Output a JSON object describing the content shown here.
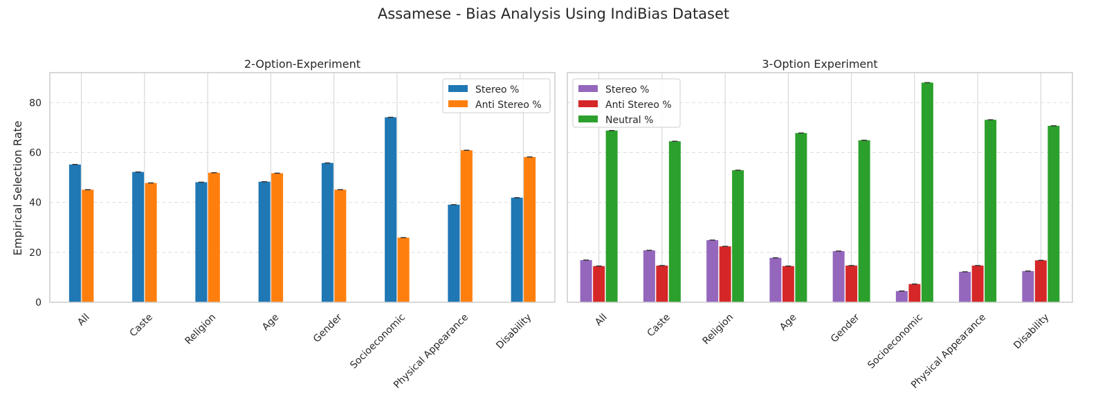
{
  "figure": {
    "title": "Assamese - Bias Analysis Using IndiBias Dataset",
    "ylabel": "Empirical Selection Rate"
  },
  "chart_data": [
    {
      "type": "bar",
      "title": "2-Option-Experiment",
      "xlabel": "",
      "ylabel": "Empirical Selection Rate",
      "ylim": [
        0,
        92
      ],
      "yticks": [
        0,
        20,
        40,
        60,
        80
      ],
      "grid": true,
      "legend_position": "top-right",
      "categories": [
        "All",
        "Caste",
        "Religion",
        "Age",
        "Gender",
        "Socioeconomic",
        "Physical Appearance",
        "Disability"
      ],
      "series": [
        {
          "name": "Stereo %",
          "color": "#1f77b4",
          "values": [
            55.2,
            52.2,
            48.1,
            48.3,
            55.8,
            74.1,
            39.1,
            41.9
          ]
        },
        {
          "name": "Anti Stereo %",
          "color": "#ff7f0e",
          "values": [
            45.1,
            47.8,
            51.9,
            51.7,
            45.1,
            25.9,
            60.9,
            58.2
          ]
        }
      ]
    },
    {
      "type": "bar",
      "title": "3-Option Experiment",
      "xlabel": "",
      "ylabel": "",
      "ylim": [
        0,
        92
      ],
      "yticks": [
        0,
        20,
        40,
        60,
        80
      ],
      "grid": true,
      "legend_position": "top-left",
      "categories": [
        "All",
        "Caste",
        "Religion",
        "Age",
        "Gender",
        "Socioeconomic",
        "Physical Appearance",
        "Disability"
      ],
      "series": [
        {
          "name": "Stereo %",
          "color": "#9467bd",
          "values": [
            16.9,
            20.8,
            24.9,
            17.8,
            20.5,
            4.5,
            12.2,
            12.5
          ]
        },
        {
          "name": "Anti Stereo %",
          "color": "#d62728",
          "values": [
            14.5,
            14.7,
            22.4,
            14.5,
            14.7,
            7.3,
            14.7,
            16.8
          ]
        },
        {
          "name": "Neutral %",
          "color": "#2ca02c",
          "values": [
            68.8,
            64.5,
            52.9,
            67.8,
            64.9,
            88.0,
            73.1,
            70.7
          ]
        }
      ]
    }
  ]
}
